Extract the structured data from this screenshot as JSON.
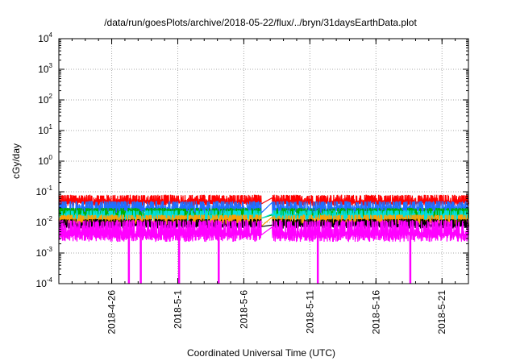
{
  "chart_data": {
    "type": "line",
    "title": "/data/run/goesPlots/archive/2018-05-22/flux/../bryn/31daysEarthData.plot",
    "xlabel": "Coordinated Universal Time (UTC)",
    "ylabel": "cGy/day",
    "yscale": "log",
    "ylim": [
      0.0001,
      10000
    ],
    "y_ticks": [
      {
        "base": "10",
        "exp": "-4"
      },
      {
        "base": "10",
        "exp": "-3"
      },
      {
        "base": "10",
        "exp": "-2"
      },
      {
        "base": "10",
        "exp": "-1"
      },
      {
        "base": "10",
        "exp": "0"
      },
      {
        "base": "10",
        "exp": "1"
      },
      {
        "base": "10",
        "exp": "2"
      },
      {
        "base": "10",
        "exp": "3"
      },
      {
        "base": "10",
        "exp": "4"
      }
    ],
    "xlim": [
      "2018-04-22",
      "2018-05-23"
    ],
    "x_ticks": [
      "2018-4-26",
      "2018-5-1",
      "2018-5-6",
      "2018-5-11",
      "2018-5-16",
      "2018-5-21"
    ],
    "grid": true,
    "data_gap": [
      "2018-05-07",
      "2018-05-08"
    ],
    "series": [
      {
        "color": "#ff0000",
        "level_top": 0.08,
        "level_base": 0.045
      },
      {
        "color": "#1e6fff",
        "level_top": 0.05,
        "level_base": 0.025
      },
      {
        "color": "#00b000",
        "level_top": 0.03,
        "level_base": 0.017
      },
      {
        "color": "#00e0e0",
        "level_top": 0.025,
        "level_base": 0.014
      },
      {
        "color": "#ffa000",
        "level_top": 0.018,
        "level_base": 0.01
      },
      {
        "color": "#000000",
        "level_top": 0.013,
        "level_base": 0.008
      },
      {
        "color": "#ff00ff",
        "level_top": 0.012,
        "level_base": 0.004
      }
    ],
    "dips": [
      {
        "date": "2018-04-27.3",
        "min": 0.0001
      },
      {
        "date": "2018-04-28.2",
        "min": 0.0001
      },
      {
        "date": "2018-05-01.1",
        "min": 0.0001
      },
      {
        "date": "2018-05-04.1",
        "min": 0.0001
      },
      {
        "date": "2018-05-11.6",
        "min": 0.0001
      },
      {
        "date": "2018-05-18.6",
        "min": 0.0001
      }
    ]
  }
}
